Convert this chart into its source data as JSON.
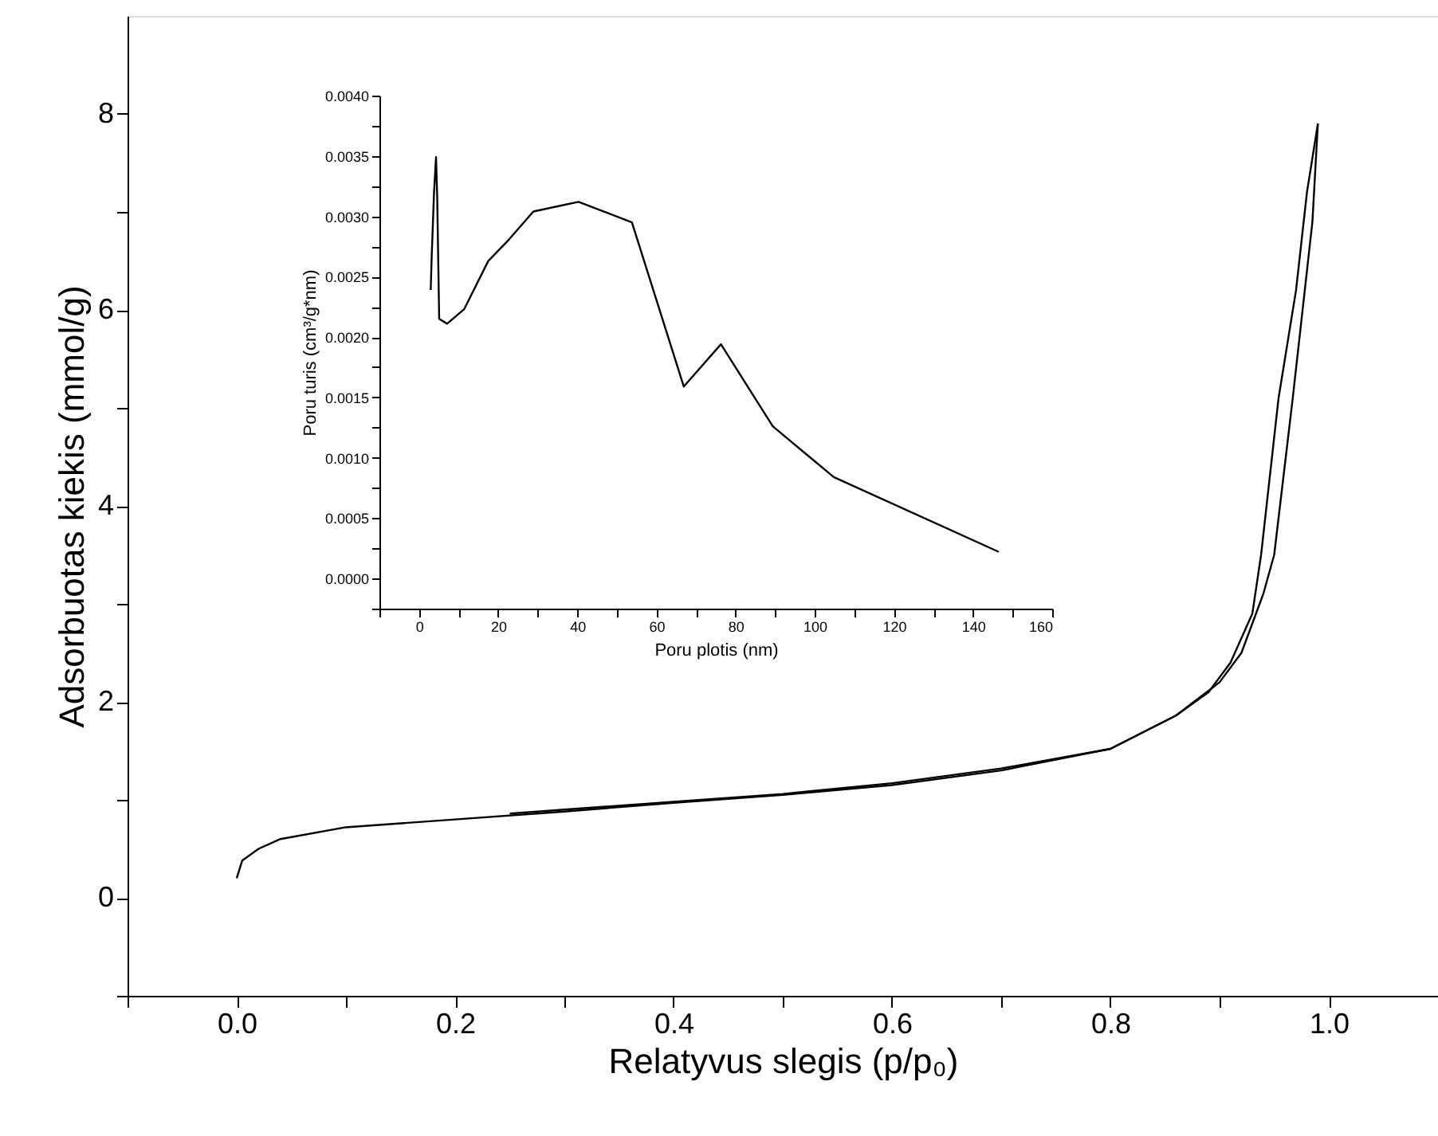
{
  "chart_data": [
    {
      "type": "line",
      "xlabel": "Relatyvus slegis (p/p₀)",
      "ylabel": "Adsorbuotas kiekis (mmol/g)",
      "xlim": [
        -0.1,
        1.1
      ],
      "ylim": [
        -1,
        9
      ],
      "xticks": [
        {
          "value": -0.1,
          "label": null
        },
        {
          "value": 0,
          "label": "0.0"
        },
        {
          "value": 0.1,
          "label": null
        },
        {
          "value": 0.2,
          "label": "0.2"
        },
        {
          "value": 0.3,
          "label": null
        },
        {
          "value": 0.4,
          "label": "0.4"
        },
        {
          "value": 0.5,
          "label": null
        },
        {
          "value": 0.6,
          "label": "0.6"
        },
        {
          "value": 0.7,
          "label": null
        },
        {
          "value": 0.8,
          "label": "0.8"
        },
        {
          "value": 0.9,
          "label": null
        },
        {
          "value": 1,
          "label": "1.0"
        }
      ],
      "yticks": [
        {
          "value": -1,
          "label": null
        },
        0,
        {
          "value": 1,
          "label": null
        },
        2,
        {
          "value": 3,
          "label": null
        },
        4,
        {
          "value": 5,
          "label": null
        },
        6,
        {
          "value": 7,
          "label": null
        },
        8
      ],
      "grid": false,
      "marker": "none",
      "line_style": "solid",
      "series": [
        {
          "color": "#000000",
          "x": [
            0.0,
            0.005,
            0.02,
            0.04,
            0.1,
            0.2,
            0.3,
            0.4,
            0.5,
            0.6,
            0.7,
            0.8,
            0.86,
            0.9,
            0.92,
            0.94,
            0.95,
            0.967,
            0.975,
            0.985,
            0.99
          ],
          "values": [
            0.2,
            0.38,
            0.5,
            0.6,
            0.72,
            0.8,
            0.88,
            0.97,
            1.05,
            1.15,
            1.3,
            1.52,
            1.86,
            2.2,
            2.5,
            3.1,
            3.5,
            5.1,
            5.9,
            6.9,
            7.9
          ]
        },
        {
          "color": "#000000",
          "x": [
            0.99,
            0.98,
            0.97,
            0.954,
            0.938,
            0.93,
            0.91,
            0.89,
            0.86,
            0.8,
            0.7,
            0.6,
            0.5,
            0.4,
            0.3,
            0.25
          ],
          "values": [
            7.9,
            7.2,
            6.2,
            5.1,
            3.5,
            2.9,
            2.4,
            2.1,
            1.86,
            1.52,
            1.32,
            1.17,
            1.06,
            0.98,
            0.9,
            0.86
          ]
        }
      ]
    },
    {
      "type": "line",
      "xlabel": "Poru plotis (nm)",
      "ylabel": "Poru turis (cm³/g*nm)",
      "xlim": [
        -10,
        160
      ],
      "ylim": [
        -0.00025,
        0.004
      ],
      "xticks": [
        {
          "value": -10,
          "label": null
        },
        0,
        {
          "value": 10,
          "label": null
        },
        20,
        {
          "value": 30,
          "label": null
        },
        40,
        {
          "value": 50,
          "label": null
        },
        60,
        {
          "value": 70,
          "label": null
        },
        80,
        {
          "value": 90,
          "label": null
        },
        100,
        {
          "value": 110,
          "label": null
        },
        120,
        {
          "value": 130,
          "label": null
        },
        140,
        {
          "value": 150,
          "label": null
        },
        160
      ],
      "yticks": [
        {
          "value": -0.00025,
          "label": null
        },
        {
          "value": 0,
          "label": "0.0000"
        },
        {
          "value": 0.00025,
          "label": null
        },
        {
          "value": 0.0005,
          "label": "0.0005"
        },
        {
          "value": 0.00075,
          "label": null
        },
        {
          "value": 0.001,
          "label": "0.0010"
        },
        {
          "value": 0.00125,
          "label": null
        },
        {
          "value": 0.0015,
          "label": "0.0015"
        },
        {
          "value": 0.00175,
          "label": null
        },
        {
          "value": 0.002,
          "label": "0.0020"
        },
        {
          "value": 0.00225,
          "label": null
        },
        {
          "value": 0.0025,
          "label": "0.0025"
        },
        {
          "value": 0.00275,
          "label": null
        },
        {
          "value": 0.003,
          "label": "0.0030"
        },
        {
          "value": 0.00325,
          "label": null
        },
        {
          "value": 0.0035,
          "label": "0.0035"
        },
        {
          "value": 0.00375,
          "label": null
        },
        {
          "value": 0.004,
          "label": "0.0040"
        }
      ],
      "grid": false,
      "marker": "none",
      "line_style": "solid",
      "series": [
        {
          "color": "#000000",
          "x": [
            2.96,
            3.2,
            3.8,
            4.3,
            4.6,
            5.1,
            7.1,
            11.4,
            17.5,
            22.8,
            28.9,
            40.3,
            53.8,
            66.9,
            76.3,
            89.4,
            104.8,
            146.5
          ],
          "values": [
            0.00239,
            0.00266,
            0.0032,
            0.00349,
            0.00316,
            0.00215,
            0.00211,
            0.00223,
            0.00263,
            0.00281,
            0.00304,
            0.00312,
            0.00295,
            0.00159,
            0.00194,
            0.00126,
            0.00084,
            0.00022
          ]
        }
      ]
    }
  ]
}
